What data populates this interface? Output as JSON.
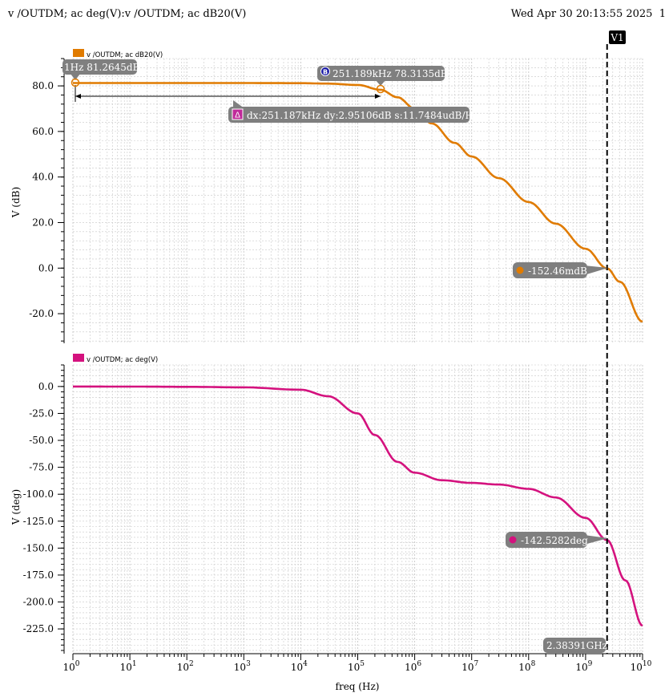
{
  "header": {
    "title": "v /OUTDM; ac deg(V):v /OUTDM; ac dB20(V)",
    "timestamp": "Wed Apr 30 20:13:55 2025",
    "page_number": "1"
  },
  "colors": {
    "db_trace": "#e07b00",
    "phase_trace": "#d4127e",
    "grid": "#c8c8c8",
    "callout": "#7f7f7f"
  },
  "cursor": {
    "name": "V1",
    "freq_hz": 2383910000,
    "freq_label": "2.38391GHz"
  },
  "markers": {
    "a_label": "1Hz 81.2645dB",
    "b_icon": "B",
    "b_label": "251.189kHz 78.3135dB",
    "delta_icon": "Δ",
    "delta_label": "dx:251.187kHz dy:2.95106dB s:11.7484udB/Hz",
    "v1_db_label": "-152.46mdB",
    "v1_deg_label": "-142.5282deg"
  },
  "chart_data": [
    {
      "type": "line",
      "title": "",
      "xlabel": "freq (Hz)",
      "ylabel": "V (dB)",
      "xscale": "log",
      "xlim": [
        1,
        10000000000
      ],
      "ylim": [
        -33,
        92
      ],
      "y_ticks": [
        "80.0",
        "60.0",
        "40.0",
        "20.0",
        "0.0",
        "-20.0"
      ],
      "y_tick_values": [
        80,
        60,
        40,
        20,
        0,
        -20
      ],
      "grid": true,
      "legend": "top-left",
      "series": [
        {
          "name": "v /OUTDM; ac dB20(V)",
          "color": "#e07b00",
          "x": [
            1,
            10,
            100,
            1000,
            10000,
            30000,
            100000,
            251189,
            500000,
            1000000,
            2000000,
            5000000,
            10000000,
            30000000,
            100000000,
            300000000,
            1000000000,
            2383910000,
            4000000000,
            10000000000
          ],
          "y": [
            81.26,
            81.26,
            81.26,
            81.25,
            81.2,
            81.0,
            80.4,
            78.31,
            75.0,
            70.0,
            63.5,
            55.0,
            49.0,
            39.5,
            29.0,
            19.5,
            8.5,
            -0.15,
            -6.0,
            -23.5
          ]
        }
      ]
    },
    {
      "type": "line",
      "title": "",
      "xlabel": "freq (Hz)",
      "ylabel": "V (deg)",
      "xscale": "log",
      "xlim": [
        1,
        10000000000
      ],
      "ylim": [
        -248,
        20
      ],
      "y_ticks": [
        "0.0",
        "-25.0",
        "-50.0",
        "-75.0",
        "-100.0",
        "-125.0",
        "-150.0",
        "-175.0",
        "-200.0",
        "-225.0"
      ],
      "y_tick_values": [
        0,
        -25,
        -50,
        -75,
        -100,
        -125,
        -150,
        -175,
        -200,
        -225
      ],
      "x_tick_bases": [
        "10",
        "10",
        "10",
        "10",
        "10",
        "10",
        "10",
        "10",
        "10",
        "10",
        "10"
      ],
      "x_tick_exps": [
        "0",
        "1",
        "2",
        "3",
        "4",
        "5",
        "6",
        "7",
        "8",
        "9",
        "10"
      ],
      "grid": true,
      "legend": "top-left",
      "series": [
        {
          "name": "v /OUTDM; ac deg(V)",
          "color": "#d4127e",
          "x": [
            1,
            10,
            100,
            1000,
            10000,
            30000,
            100000,
            200000,
            500000,
            1000000,
            3000000,
            10000000,
            30000000,
            100000000,
            300000000,
            1000000000,
            2383910000,
            5000000000,
            10000000000
          ],
          "y": [
            0,
            -0.1,
            -0.3,
            -0.8,
            -3.0,
            -9.0,
            -25.0,
            -45.0,
            -70.0,
            -80.0,
            -87.0,
            -89.5,
            -91.0,
            -95.0,
            -103.0,
            -122.0,
            -142.53,
            -180.0,
            -222.0
          ]
        }
      ]
    }
  ]
}
